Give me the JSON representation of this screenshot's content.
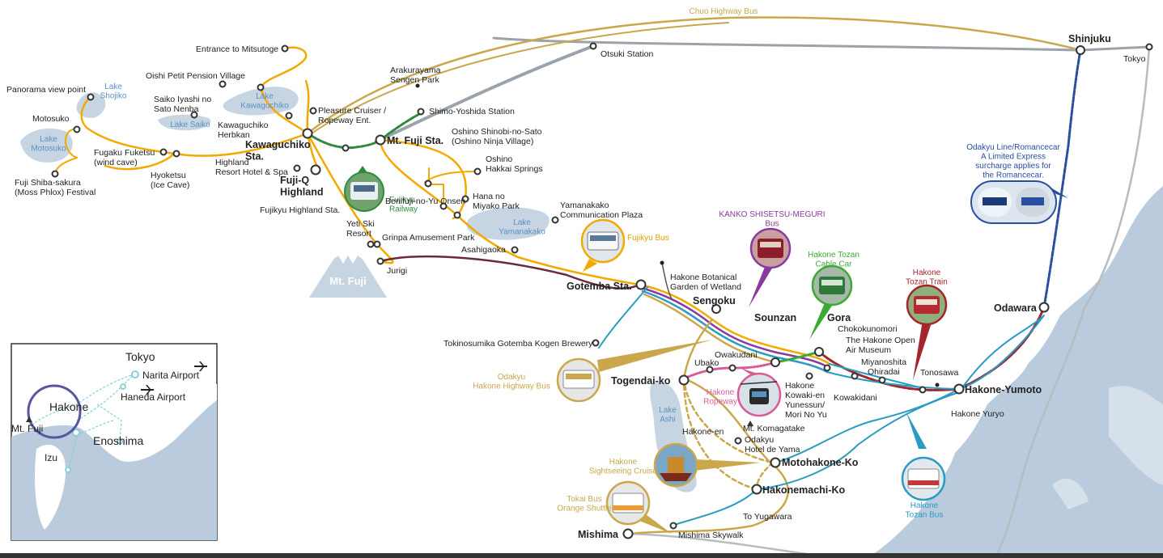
{
  "colors": {
    "sea": "#b9cbdc",
    "land": "#ffffff",
    "lake": "#c7d5e3",
    "fuji_route": "#f2a900",
    "highway_bus": "#c9a74a",
    "fujikyu_railway": "#2e8b3e",
    "jr_line": "#9aa3ab",
    "odakyu_line": "#2a4fa0",
    "tozan_train": "#a4262c",
    "tozan_bus": "#2a9bc2",
    "ropeway": "#d95a96",
    "kanko_bus": "#8a3a9e",
    "jurigi_line": "#6a2a3a",
    "cable_car": "#3aaa35"
  },
  "services": {
    "chuo_bus": "Chuo Highway Bus",
    "fujikyu_railway": "Fujikyu\nRailway",
    "fujikyu_bus": "Fujikyu Bus",
    "kanko": "KANKO SHISETSU-MEGURI\nBus",
    "cable_car": "Hakone Tozan\nCable Car",
    "tozan_train": "Hakone\nTozan Train",
    "odakyu_line": "Odakyu Line/Romancecar\nA Limited Express\nsurcharge applies for\nthe Romancecar.",
    "highway_bus": "Odakyu\nHakone Highway Bus",
    "ropeway": "Hakone\nRopeway",
    "sightseeing_cruise": "Hakone\nSightseeing Cruise",
    "tokai_bus": "Tokai Bus\nOrange Shuttle",
    "tozan_bus": "Hakone\nTozan Bus"
  },
  "stations": {
    "shinjuku": "Shinjuku",
    "tokyo": "Tokyo",
    "otsuki": "Otsuki Station",
    "shimo_yoshida": "Shimo-Yoshida Station",
    "arakurayama": "Arakurayama\nSengen Park",
    "mt_fuji_sta": "Mt. Fuji Sta.",
    "kawaguchiko_sta": "Kawaguchiko\nSta.",
    "fujiq_highland": "Fuji-Q\nHighland",
    "fujikyu_highland_sta": "Fujikyu Highland Sta.",
    "highland_resort": "Highland\nResort Hotel & Spa",
    "oshino_ninja": "Oshino Shinobi-no-Sato\n(Oshino Ninja Village)",
    "oshino_hakkai": "Oshino\nHakkai Springs",
    "hana_no_miyako": "Hana no\nMiyako Park",
    "benifuji": "Benifuji-no-Yu Onsen",
    "yamanakako_plaza": "Yamanakako\nCommunication Plaza",
    "yeti": "Yeti Ski\nResort",
    "grinpa": "Grinpa Amusement Park",
    "asahigaoka": "Asahigaoka",
    "jurigi": "Jurigi",
    "gotemba": "Gotemba Sta.",
    "botanical": "Hakone Botanical\nGarden of Wetland",
    "sengoku": "Sengoku",
    "tokinosumika": "Tokinosumika Gotemba Kogen Brewery",
    "sounzan": "Sounzan",
    "gora": "Gora",
    "chokokunomori": "Chokokunomori",
    "open_air": "The Hakone Open\nAir Museum",
    "miyanoshita": "Miyanoshita",
    "ohiradai": "Ohiradai",
    "tonosawa": "Tonosawa",
    "hakone_yumoto": "Hakone-Yumoto",
    "hakone_yuryo": "Hakone Yuryo",
    "odawara": "Odawara",
    "kowakidani": "Kowakidani",
    "kowakien": "Hakone\nKowaki-en\nYunessun/\nMori No Yu",
    "owakudani": "Owakudani",
    "ubako": "Ubako",
    "togendai": "Togendai-ko",
    "komagatake": "Mt. Komagatake",
    "hakone_en": "Hakone-en",
    "odakyu_hotel": "Odakyu\nHotel de Yama",
    "motohakone": "Motohakone-Ko",
    "hakonemachi": "Hakonemachi-Ko",
    "yugawara": "To Yugawara",
    "mishima": "Mishima",
    "mishima_skywalk": "Mishima Skywalk",
    "mitsutoge": "Entrance to Mitsutoge",
    "oishi": "Oishi Petit Pension Village",
    "panorama": "Panorama view point",
    "saiko_iyashi": "Saiko Iyashi no\nSato Nenba",
    "pleasure_cruiser": "Pleasure Cruiser /\nRopeway Ent.",
    "herbkan": "Kawaguchiko\nHerbkan",
    "motosuko": "Motosuko",
    "fugaku": "Fugaku Fuketsu\n(wind cave)",
    "hyoketsu": "Hyoketsu\n(Ice Cave)",
    "shibasakura": "Fuji Shiba-sakura\n(Moss Phlox) Festival"
  },
  "lakes": {
    "shojiko": "Lake\nShojiko",
    "kawaguchiko": "Lake\nKawaguchiko",
    "saiko": "Lake Saiko",
    "motosuko": "Lake\nMotosuko",
    "yamanakako": "Lake\nYamanakako",
    "ashi": "Lake\nAshi"
  },
  "mountain": "Mt. Fuji",
  "inset": {
    "tokyo": "Tokyo",
    "narita": "Narita Airport",
    "haneda": "Haneda Airport",
    "hakone": "Hakone",
    "mt_fuji": "Mt. Fuji",
    "enoshima": "Enoshima",
    "izu": "Izu"
  },
  "icons": [
    "airplane-icon",
    "train-photo-icon",
    "bus-photo-icon",
    "ship-photo-icon",
    "ropeway-photo-icon",
    "mountain-icon"
  ]
}
